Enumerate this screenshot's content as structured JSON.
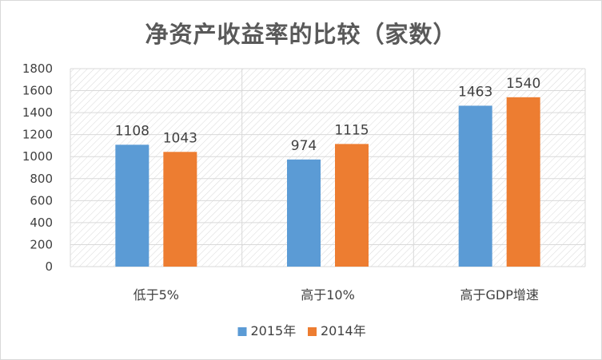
{
  "chart_data": {
    "type": "bar",
    "title": "净资产收益率的比较（家数）",
    "categories": [
      "低于5%",
      "高于10%",
      "高于GDP增速"
    ],
    "series": [
      {
        "name": "2015年",
        "values": [
          1108,
          974,
          1463
        ],
        "color": "#5b9bd5"
      },
      {
        "name": "2014年",
        "values": [
          1043,
          1115,
          1540
        ],
        "color": "#ed7d31"
      }
    ],
    "ylim": [
      0,
      1800
    ],
    "yticks": [
      0,
      200,
      400,
      600,
      800,
      1000,
      1200,
      1400,
      1600,
      1800
    ],
    "grid": true,
    "legend": "bottom"
  }
}
